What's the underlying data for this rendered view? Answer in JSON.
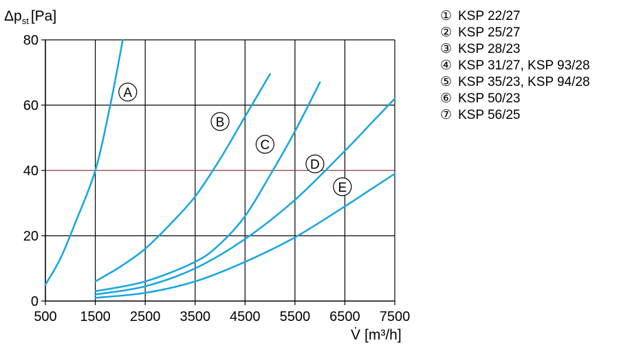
{
  "chart_data": {
    "type": "line",
    "title": "",
    "ylabel": "Δp",
    "ylabel_subscript": "st",
    "ylabel_unit": "[Pa]",
    "xlabel": "V̇",
    "xlabel_unit": "[m³/h]",
    "xlim": [
      500,
      7500
    ],
    "ylim": [
      0,
      80
    ],
    "x_ticks": [
      500,
      1500,
      2500,
      3500,
      4500,
      5500,
      6500,
      7500
    ],
    "y_ticks": [
      0,
      20,
      40,
      60,
      80
    ],
    "grid": true,
    "line_color": "#1aa7e0",
    "grid_color": "#000000",
    "highlight_gridline": {
      "y": 40,
      "color": "#8b3a3a"
    },
    "series": [
      {
        "name": "A",
        "x": [
          500,
          800,
          1100,
          1500,
          1800,
          2050
        ],
        "y": [
          5,
          13,
          24,
          40,
          60,
          80
        ]
      },
      {
        "name": "B",
        "x": [
          1500,
          2000,
          2500,
          3000,
          3500,
          4000,
          4500,
          5000
        ],
        "y": [
          6,
          10.5,
          16,
          23.5,
          32,
          43.5,
          56.5,
          69.5
        ]
      },
      {
        "name": "C",
        "x": [
          1500,
          2500,
          3500,
          4000,
          4500,
          5000,
          5500,
          6000
        ],
        "y": [
          3,
          6,
          12,
          17.5,
          26,
          38.5,
          52,
          67
        ]
      },
      {
        "name": "D",
        "x": [
          1500,
          2500,
          3500,
          4500,
          5500,
          6500,
          7000,
          7500
        ],
        "y": [
          2,
          4.5,
          10,
          19,
          31,
          46,
          54,
          62
        ]
      },
      {
        "name": "E",
        "x": [
          1500,
          2500,
          3500,
          4500,
          5500,
          6500,
          7000,
          7500
        ],
        "y": [
          1,
          2.5,
          6,
          12,
          19.5,
          29,
          34,
          39
        ]
      }
    ],
    "curve_labels": [
      {
        "text": "A",
        "x": 2150,
        "y": 64
      },
      {
        "text": "B",
        "x": 4000,
        "y": 55
      },
      {
        "text": "C",
        "x": 4900,
        "y": 48
      },
      {
        "text": "D",
        "x": 5900,
        "y": 42
      },
      {
        "text": "E",
        "x": 6450,
        "y": 35
      }
    ],
    "legend": [
      {
        "number": "①",
        "label": "KSP 22/27"
      },
      {
        "number": "②",
        "label": "KSP 25/27"
      },
      {
        "number": "③",
        "label": "KSP 28/23"
      },
      {
        "number": "④",
        "label": "KSP 31/27, KSP 93/28"
      },
      {
        "number": "⑤",
        "label": "KSP 35/23, KSP 94/28"
      },
      {
        "number": "⑥",
        "label": "KSP 50/23"
      },
      {
        "number": "⑦",
        "label": "KSP 56/25"
      }
    ]
  }
}
